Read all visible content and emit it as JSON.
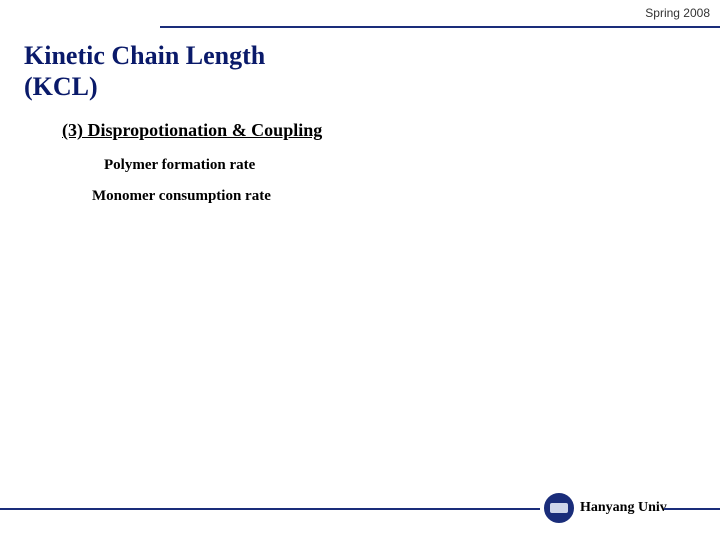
{
  "header": {
    "semester": "Spring 2008"
  },
  "title": {
    "line1": "Kinetic Chain Length",
    "line2": "(KCL)"
  },
  "subheading": "(3) Dispropotionation & Coupling",
  "items": {
    "item1": "Polymer formation rate",
    "item2": "Monomer consumption rate"
  },
  "footer": {
    "institution": "Hanyang Univ"
  },
  "colors": {
    "title_color": "#0a1a6a",
    "line_color": "#1a2d7a",
    "text_color": "#000000",
    "background": "#ffffff"
  }
}
